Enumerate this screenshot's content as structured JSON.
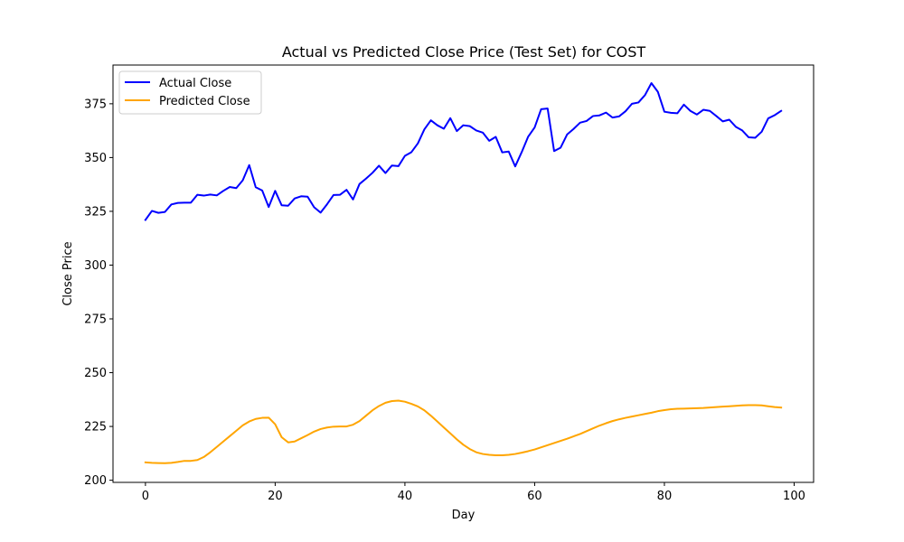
{
  "chart_data": {
    "type": "line",
    "title": "Actual vs Predicted Close Price (Test Set) for COST",
    "xlabel": "Day",
    "ylabel": "Close Price",
    "xlim": [
      -5,
      103
    ],
    "ylim": [
      199,
      393
    ],
    "xticks": [
      0,
      20,
      40,
      60,
      80,
      100
    ],
    "yticks": [
      200,
      225,
      250,
      275,
      300,
      325,
      350,
      375
    ],
    "grid": false,
    "legend": "top-left",
    "series": [
      {
        "name": "Actual Close",
        "color": "#0000ff",
        "x": [
          0,
          1,
          2,
          3,
          4,
          5,
          6,
          7,
          8,
          9,
          10,
          11,
          12,
          13,
          14,
          15,
          16,
          17,
          18,
          19,
          20,
          21,
          22,
          23,
          24,
          25,
          26,
          27,
          28,
          29,
          30,
          31,
          32,
          33,
          34,
          35,
          36,
          37,
          38,
          39,
          40,
          41,
          42,
          43,
          44,
          45,
          46,
          47,
          48,
          49,
          50,
          51,
          52,
          53,
          54,
          55,
          56,
          57,
          58,
          59,
          60,
          61,
          62,
          63,
          64,
          65,
          66,
          67,
          68,
          69,
          70,
          71,
          72,
          73,
          74,
          75,
          76,
          77,
          78,
          79,
          80,
          81,
          82,
          83,
          84,
          85,
          86,
          87,
          88,
          89,
          90,
          91,
          92,
          93,
          94,
          95,
          96,
          97,
          98
        ],
        "y": [
          321,
          325.2,
          324.3,
          324.7,
          328.2,
          328.9,
          329.0,
          329.0,
          332.7,
          332.3,
          332.8,
          332.4,
          334.5,
          336.3,
          335.8,
          339.4,
          346.5,
          336.2,
          334.7,
          327.0,
          334.5,
          327.8,
          327.6,
          331.0,
          332.0,
          331.8,
          326.9,
          324.4,
          328.3,
          332.6,
          332.7,
          335.0,
          330.5,
          337.7,
          340.2,
          342.9,
          346.2,
          342.8,
          346.3,
          346.0,
          350.8,
          352.5,
          356.6,
          363.1,
          367.3,
          365.0,
          363.4,
          368.3,
          362.3,
          365.0,
          364.6,
          362.6,
          361.6,
          357.8,
          359.6,
          352.4,
          352.8,
          345.9,
          352.5,
          359.7,
          364.0,
          372.5,
          372.8,
          353.0,
          354.6,
          360.7,
          363.3,
          366.2,
          367.0,
          369.3,
          369.6,
          370.9,
          368.6,
          369.1,
          371.5,
          375.0,
          375.6,
          379.0,
          384.6,
          380.5,
          371.3,
          370.8,
          370.6,
          374.6,
          371.7,
          370.0,
          372.2,
          371.7,
          369.3,
          366.8,
          367.6,
          364.3,
          362.6,
          359.4,
          359.2,
          362.0,
          368.2,
          369.7,
          371.7
        ]
      },
      {
        "name": "Predicted Close",
        "color": "#ffa500",
        "x": [
          0,
          1,
          2,
          3,
          4,
          5,
          6,
          7,
          8,
          9,
          10,
          11,
          12,
          13,
          14,
          15,
          16,
          17,
          18,
          19,
          20,
          21,
          22,
          23,
          24,
          25,
          26,
          27,
          28,
          29,
          30,
          31,
          32,
          33,
          34,
          35,
          36,
          37,
          38,
          39,
          40,
          41,
          42,
          43,
          44,
          45,
          46,
          47,
          48,
          49,
          50,
          51,
          52,
          53,
          54,
          55,
          56,
          57,
          58,
          59,
          60,
          61,
          62,
          63,
          64,
          65,
          66,
          67,
          68,
          69,
          70,
          71,
          72,
          73,
          74,
          75,
          76,
          77,
          78,
          79,
          80,
          81,
          82,
          83,
          84,
          85,
          86,
          87,
          88,
          89,
          90,
          91,
          92,
          93,
          94,
          95,
          96,
          97,
          98
        ],
        "y": [
          208.3,
          208.1,
          208.0,
          207.9,
          208.1,
          208.5,
          209.0,
          209.0,
          209.4,
          210.8,
          213.0,
          215.5,
          218.0,
          220.5,
          223.0,
          225.5,
          227.3,
          228.5,
          229.0,
          229.1,
          226.0,
          220.0,
          217.6,
          218.0,
          219.5,
          221.0,
          222.6,
          223.8,
          224.5,
          224.9,
          225.0,
          225.0,
          225.8,
          227.5,
          230.0,
          232.5,
          234.5,
          236.0,
          236.8,
          237.0,
          236.5,
          235.5,
          234.3,
          232.5,
          230.0,
          227.3,
          224.5,
          221.8,
          219.0,
          216.5,
          214.5,
          213.0,
          212.2,
          211.8,
          211.6,
          211.6,
          211.8,
          212.2,
          212.8,
          213.5,
          214.3,
          215.3,
          216.3,
          217.3,
          218.3,
          219.3,
          220.4,
          221.5,
          222.8,
          224.1,
          225.4,
          226.5,
          227.5,
          228.3,
          229.0,
          229.6,
          230.2,
          230.8,
          231.4,
          232.1,
          232.6,
          233.0,
          233.2,
          233.3,
          233.4,
          233.5,
          233.6,
          233.8,
          234.0,
          234.2,
          234.4,
          234.6,
          234.8,
          234.9,
          234.9,
          234.8,
          234.4,
          234.0,
          233.8
        ]
      }
    ]
  }
}
